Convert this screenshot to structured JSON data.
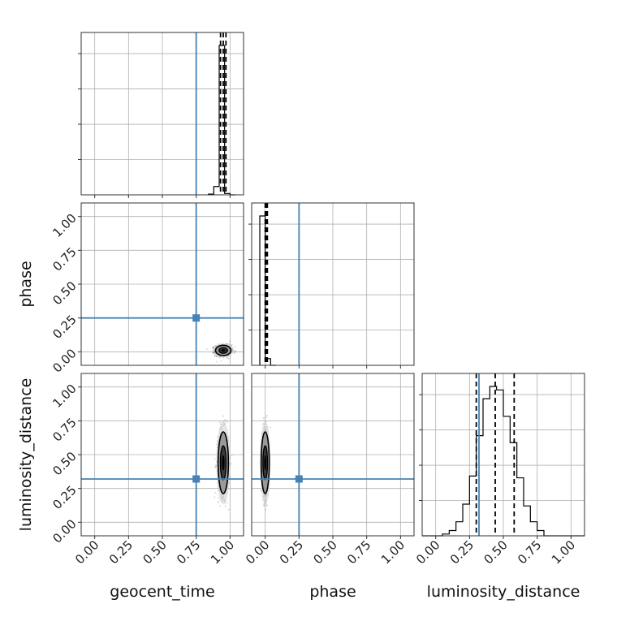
{
  "chart_data": {
    "type": "corner",
    "parameters": [
      "geocent_time",
      "phase",
      "luminosity_distance"
    ],
    "axis_range": [
      -0.1,
      1.1
    ],
    "ticks": [
      0.0,
      0.25,
      0.5,
      0.75,
      1.0
    ],
    "tick_labels": [
      "0.00",
      "0.25",
      "0.50",
      "0.75",
      "1.00"
    ],
    "truths": [
      0.75,
      0.25,
      0.32
    ],
    "truth_color": "#4682b4",
    "grid": true,
    "histograms": [
      {
        "parameter": "geocent_time",
        "bin_edges": [
          0.84,
          0.88,
          0.92,
          0.96,
          1.0,
          1.04
        ],
        "counts": [
          1,
          12,
          215,
          2,
          0
        ],
        "quantiles": [
          0.93,
          0.95,
          0.97
        ]
      },
      {
        "parameter": "phase",
        "bin_edges": [
          -0.04,
          0.0,
          0.04,
          0.08
        ],
        "counts": [
          90,
          4,
          0
        ],
        "quantiles": [
          0.0,
          0.008,
          0.016
        ]
      },
      {
        "parameter": "luminosity_distance",
        "bin_edges": [
          -0.1,
          -0.05,
          0.0,
          0.05,
          0.1,
          0.15,
          0.2,
          0.25,
          0.3,
          0.35,
          0.4,
          0.45,
          0.5,
          0.55,
          0.6,
          0.65,
          0.7,
          0.75,
          0.8,
          0.85,
          0.9,
          0.95,
          1.0,
          1.05,
          1.1
        ],
        "counts": [
          0,
          0,
          0,
          1,
          3,
          8,
          18,
          34,
          57,
          78,
          85,
          83,
          68,
          53,
          33,
          17,
          8,
          3,
          0,
          0,
          0,
          0,
          0,
          0
        ],
        "quantiles": [
          0.3,
          0.44,
          0.58
        ]
      }
    ],
    "scatter_panels": [
      {
        "x": "geocent_time",
        "y": "phase",
        "center": [
          0.95,
          0.01
        ],
        "spread": [
          0.03,
          0.02
        ]
      },
      {
        "x": "geocent_time",
        "y": "luminosity_distance",
        "center": [
          0.95,
          0.44
        ],
        "spread": [
          0.02,
          0.12
        ]
      },
      {
        "x": "phase",
        "y": "luminosity_distance",
        "center": [
          0.0,
          0.44
        ],
        "spread": [
          0.01,
          0.12
        ]
      }
    ]
  }
}
